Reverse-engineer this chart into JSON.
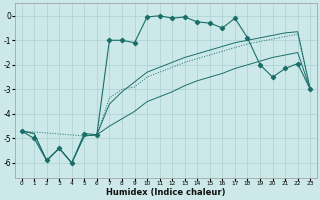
{
  "xlabel": "Humidex (Indice chaleur)",
  "bg_color": "#cce8e8",
  "line_color": "#1a6e6a",
  "grid_color": "#aad0d0",
  "xlim": [
    -0.5,
    23.5
  ],
  "ylim": [
    -6.6,
    0.5
  ],
  "yticks": [
    0,
    -1,
    -2,
    -3,
    -4,
    -5,
    -6
  ],
  "xticks": [
    0,
    1,
    2,
    3,
    4,
    5,
    6,
    7,
    8,
    9,
    10,
    11,
    12,
    13,
    14,
    15,
    16,
    17,
    18,
    19,
    20,
    21,
    22,
    23
  ],
  "line1_x": [
    0,
    1,
    2,
    3,
    4,
    5,
    6,
    7,
    8,
    9,
    10,
    11,
    12,
    13,
    14,
    15,
    16,
    17,
    18,
    19,
    20,
    21,
    22,
    23
  ],
  "line1_y": [
    -4.7,
    -5.0,
    -5.9,
    -5.4,
    -6.0,
    -4.8,
    -4.85,
    -1.0,
    -1.0,
    -1.1,
    -0.05,
    0.0,
    -0.1,
    -0.05,
    -0.25,
    -0.3,
    -0.5,
    -0.1,
    -0.9,
    -2.0,
    -2.5,
    -2.15,
    -1.95,
    -3.0
  ],
  "line2_x": [
    0,
    1,
    2,
    3,
    4,
    5,
    6,
    7,
    8,
    9,
    10,
    11,
    12,
    13,
    14,
    15,
    16,
    17,
    18,
    19,
    20,
    21,
    22,
    23
  ],
  "line2_y": [
    -4.7,
    -4.8,
    -5.9,
    -5.4,
    -6.0,
    -4.9,
    -4.85,
    -3.6,
    -3.1,
    -2.7,
    -2.3,
    -2.1,
    -1.9,
    -1.7,
    -1.55,
    -1.4,
    -1.25,
    -1.1,
    -1.0,
    -0.9,
    -0.8,
    -0.7,
    -0.65,
    -3.0
  ],
  "line3_x": [
    0,
    1,
    2,
    3,
    4,
    5,
    6,
    7,
    8,
    9,
    10,
    11,
    12,
    13,
    14,
    15,
    16,
    17,
    18,
    19,
    20,
    21,
    22,
    23
  ],
  "line3_y": [
    -4.7,
    -4.8,
    -5.9,
    -5.4,
    -6.0,
    -4.9,
    -4.85,
    -4.5,
    -4.2,
    -3.9,
    -3.5,
    -3.3,
    -3.1,
    -2.85,
    -2.65,
    -2.5,
    -2.35,
    -2.15,
    -2.0,
    -1.85,
    -1.7,
    -1.6,
    -1.5,
    -3.0
  ],
  "line4_x": [
    0,
    5,
    6,
    7,
    8,
    9,
    10,
    11,
    12,
    13,
    14,
    15,
    16,
    17,
    18,
    19,
    20,
    21,
    22,
    23
  ],
  "line4_y": [
    -4.7,
    -4.9,
    -4.85,
    -3.35,
    -3.0,
    -2.9,
    -2.5,
    -2.3,
    -2.1,
    -1.9,
    -1.75,
    -1.6,
    -1.45,
    -1.3,
    -1.15,
    -1.05,
    -0.95,
    -0.85,
    -0.75,
    -3.0
  ]
}
